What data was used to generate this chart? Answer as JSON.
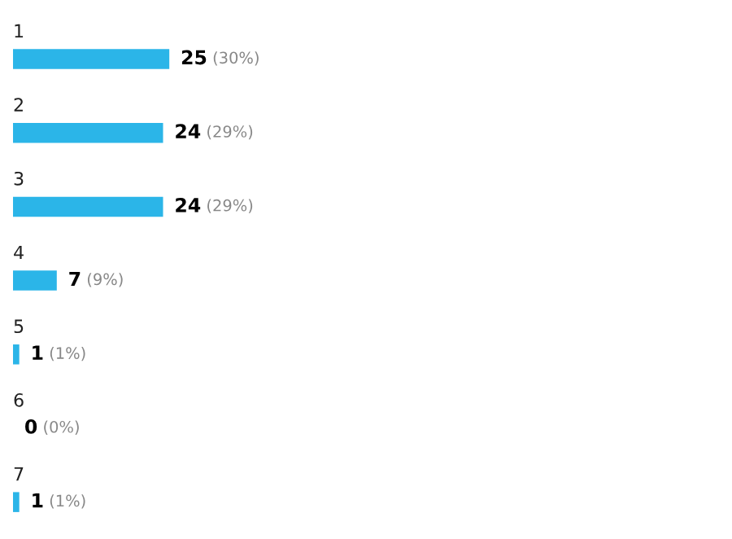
{
  "chart_data": {
    "type": "bar",
    "orientation": "horizontal",
    "categories": [
      "1",
      "2",
      "3",
      "4",
      "5",
      "6",
      "7"
    ],
    "values": [
      25,
      24,
      24,
      7,
      1,
      0,
      1
    ],
    "value_labels": [
      "25 (30%)",
      "24 (29%)",
      "24 (29%)",
      "7 (9%)",
      "1 (1%)",
      "0 (0%)",
      "1 (1%)"
    ],
    "color": "#2bb5e8"
  }
}
